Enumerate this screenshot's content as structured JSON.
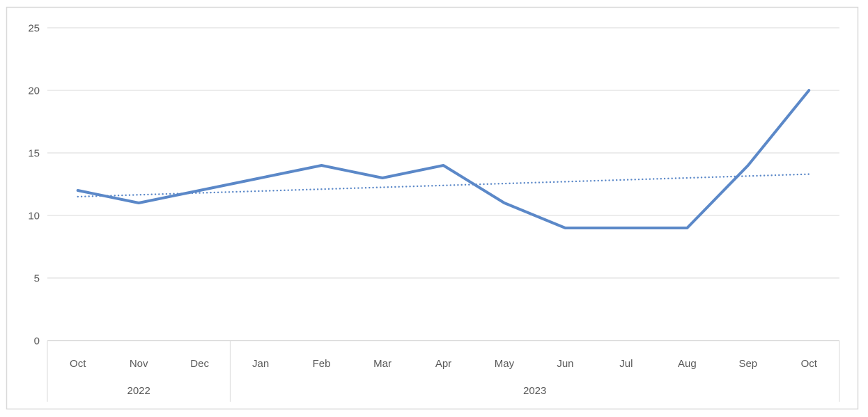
{
  "chart_data": {
    "type": "line",
    "title": "",
    "xlabel": "",
    "ylabel": "",
    "x": {
      "categories": [
        "Oct",
        "Nov",
        "Dec",
        "Jan",
        "Feb",
        "Mar",
        "Apr",
        "May",
        "Jun",
        "Jul",
        "Aug",
        "Sep",
        "Oct"
      ],
      "groups": [
        {
          "year": "2022",
          "months": [
            "Oct",
            "Nov",
            "Dec"
          ]
        },
        {
          "year": "2023",
          "months": [
            "Jan",
            "Feb",
            "Mar",
            "Apr",
            "May",
            "Jun",
            "Jul",
            "Aug",
            "Sep",
            "Oct"
          ]
        }
      ]
    },
    "series": [
      {
        "name": "monthly-values",
        "style": "solid",
        "values": [
          12,
          11,
          12,
          13,
          14,
          13,
          14,
          11,
          9,
          9,
          9,
          14,
          20
        ]
      }
    ],
    "trendline": {
      "style": "dotted-linear",
      "start_value": 11.5,
      "end_value": 13.3
    },
    "y_axis": {
      "min": 0,
      "max": 25,
      "ticks": [
        0,
        5,
        10,
        15,
        20,
        25
      ]
    },
    "grid": true,
    "legend": false,
    "colors": {
      "series_line": "#5B88C8",
      "trendline": "#5B88C8",
      "gridline": "#D9D9D9",
      "axis_line": "#BFBFBF",
      "divider": "#D9D9D9",
      "text": "#595959",
      "chart_border": "#D9D9D9",
      "background": "#FFFFFF"
    }
  }
}
